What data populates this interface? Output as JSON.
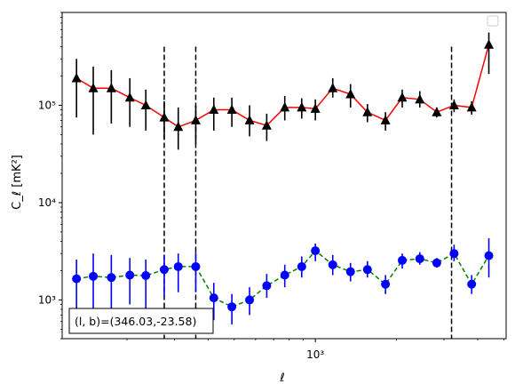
{
  "chart_data": {
    "type": "scatter",
    "xlabel": "ℓ",
    "ylabel": "C_ℓ  [mK²]",
    "xscale": "log",
    "yscale": "log",
    "xlim": [
      115,
      5100
    ],
    "ylim": [
      400,
      900000
    ],
    "x_tick_label": "10³",
    "y_tick_labels": [
      {
        "value": 1000,
        "text": "10³"
      },
      {
        "value": 10000,
        "text": "10⁴"
      },
      {
        "value": 100000,
        "text": "10⁵"
      }
    ],
    "annotation": "(l, b)=(346.03,-23.58)",
    "legend": "top-right",
    "vlines": [
      275,
      360,
      3200
    ],
    "vline_ranges": [
      [
        400,
        400000
      ],
      [
        400,
        400000
      ],
      [
        400,
        400000
      ]
    ],
    "series": [
      {
        "marker": "triangle",
        "color": "#000000",
        "line_color": "#ff0000",
        "line_style": "solid",
        "x": [
          130,
          150,
          175,
          205,
          235,
          275,
          310,
          360,
          420,
          490,
          570,
          660,
          770,
          890,
          1000,
          1160,
          1350,
          1560,
          1820,
          2100,
          2440,
          2820,
          3270,
          3800,
          4400
        ],
        "y": [
          190000,
          150000,
          150000,
          120000,
          100000,
          75000,
          60000,
          70000,
          90000,
          90000,
          70000,
          62000,
          95000,
          95000,
          92000,
          150000,
          130000,
          85000,
          70000,
          120000,
          115000,
          85000,
          100000,
          95000,
          420000
        ],
        "y_low": [
          75000,
          50000,
          65000,
          60000,
          55000,
          45000,
          35000,
          40000,
          55000,
          60000,
          48000,
          43000,
          70000,
          73000,
          70000,
          120000,
          95000,
          67000,
          55000,
          95000,
          95000,
          75000,
          85000,
          80000,
          210000
        ],
        "y_high": [
          300000,
          250000,
          230000,
          190000,
          145000,
          110000,
          95000,
          100000,
          120000,
          120000,
          100000,
          82000,
          125000,
          118000,
          115000,
          190000,
          165000,
          103000,
          85000,
          145000,
          140000,
          95000,
          115000,
          110000,
          560000
        ]
      },
      {
        "marker": "circle",
        "color": "#0000ff",
        "line_color": "#008000",
        "line_style": "dashed",
        "x": [
          130,
          150,
          175,
          205,
          235,
          275,
          310,
          360,
          420,
          490,
          570,
          660,
          770,
          890,
          1000,
          1160,
          1350,
          1560,
          1820,
          2100,
          2440,
          2820,
          3270,
          3800,
          4400
        ],
        "y": [
          1650,
          1750,
          1700,
          1800,
          1780,
          2050,
          2200,
          2200,
          1050,
          850,
          1000,
          1400,
          1800,
          2200,
          3200,
          2300,
          1950,
          2050,
          1450,
          2550,
          2650,
          2400,
          3000,
          1450,
          2850
        ],
        "y_low": [
          700,
          650,
          750,
          900,
          800,
          1100,
          1200,
          1200,
          620,
          560,
          700,
          1050,
          1350,
          1700,
          2500,
          1800,
          1550,
          1700,
          1150,
          2100,
          2300,
          2150,
          2500,
          1150,
          1700
        ],
        "y_high": [
          2600,
          3000,
          2900,
          2700,
          2600,
          2900,
          3000,
          3100,
          1500,
          1150,
          1350,
          1850,
          2300,
          2800,
          3800,
          2900,
          2400,
          2500,
          1800,
          3000,
          3100,
          2700,
          3700,
          1800,
          4300
        ]
      }
    ]
  }
}
